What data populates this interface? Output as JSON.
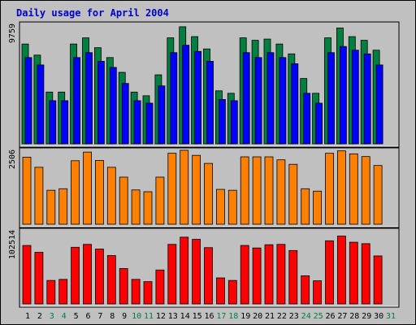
{
  "title": "Daily usage for April 2004",
  "colors": {
    "background": "#c0c0c0",
    "weekday_label": "#000000",
    "weekend_label": "#008040",
    "series1_back": "#008040",
    "series1_front": "#0000ff",
    "series2": "#ff8000",
    "series3": "#ff0000"
  },
  "chart_data": [
    {
      "type": "bar",
      "panel": "top",
      "max_label": "9759",
      "ylim": [
        0,
        9759
      ],
      "categories": [
        "1",
        "2",
        "3",
        "4",
        "5",
        "6",
        "7",
        "8",
        "9",
        "10",
        "11",
        "12",
        "13",
        "14",
        "15",
        "16",
        "17",
        "18",
        "19",
        "20",
        "21",
        "22",
        "23",
        "24",
        "25",
        "26",
        "27",
        "28",
        "29",
        "30",
        "31"
      ],
      "weekend_days": [
        "3",
        "4",
        "10",
        "11",
        "17",
        "18",
        "24",
        "25",
        "31"
      ],
      "series": [
        {
          "values": [
            8100,
            7200,
            4200,
            4200,
            8100,
            8600,
            7800,
            7000,
            5800,
            4200,
            3900,
            5600,
            8600,
            9500,
            8700,
            7700,
            4300,
            4100,
            8600,
            8400,
            8500,
            8100,
            7300,
            5300,
            4100,
            8600,
            9400,
            8700,
            8400,
            7600,
            0
          ]
        },
        {
          "values": [
            7000,
            6400,
            3500,
            3500,
            7000,
            7400,
            6700,
            6200,
            4900,
            3500,
            3300,
            4700,
            7400,
            8000,
            7500,
            6700,
            3600,
            3500,
            7400,
            7000,
            7400,
            7000,
            6500,
            4100,
            3300,
            7400,
            7900,
            7600,
            7300,
            6400,
            0
          ]
        }
      ]
    },
    {
      "type": "bar",
      "panel": "middle",
      "max_label": "2506",
      "ylim": [
        0,
        2506
      ],
      "categories": [
        "1",
        "2",
        "3",
        "4",
        "5",
        "6",
        "7",
        "8",
        "9",
        "10",
        "11",
        "12",
        "13",
        "14",
        "15",
        "16",
        "17",
        "18",
        "19",
        "20",
        "21",
        "22",
        "23",
        "24",
        "25",
        "26",
        "27",
        "28",
        "29",
        "30",
        "31"
      ],
      "series": [
        {
          "values": [
            2250,
            1910,
            1140,
            1190,
            2130,
            2420,
            2140,
            1910,
            1580,
            1150,
            1090,
            1580,
            2380,
            2480,
            2310,
            2040,
            1170,
            1140,
            2260,
            2260,
            2260,
            2160,
            2010,
            1190,
            1110,
            2380,
            2460,
            2360,
            2270,
            1970,
            0
          ]
        }
      ]
    },
    {
      "type": "bar",
      "panel": "bottom",
      "max_label": "102514",
      "ylim": [
        0,
        102514
      ],
      "categories": [
        "1",
        "2",
        "3",
        "4",
        "5",
        "6",
        "7",
        "8",
        "9",
        "10",
        "11",
        "12",
        "13",
        "14",
        "15",
        "16",
        "17",
        "18",
        "19",
        "20",
        "21",
        "22",
        "23",
        "24",
        "25",
        "26",
        "27",
        "28",
        "29",
        "30",
        "31"
      ],
      "series": [
        {
          "values": [
            81000,
            71500,
            32500,
            34000,
            78500,
            82500,
            76000,
            67000,
            49000,
            34000,
            30800,
            47000,
            82500,
            92500,
            89500,
            78000,
            36000,
            32500,
            81000,
            77500,
            82000,
            82500,
            74000,
            39000,
            32000,
            87500,
            94000,
            85500,
            83500,
            66500,
            0
          ]
        }
      ]
    }
  ]
}
